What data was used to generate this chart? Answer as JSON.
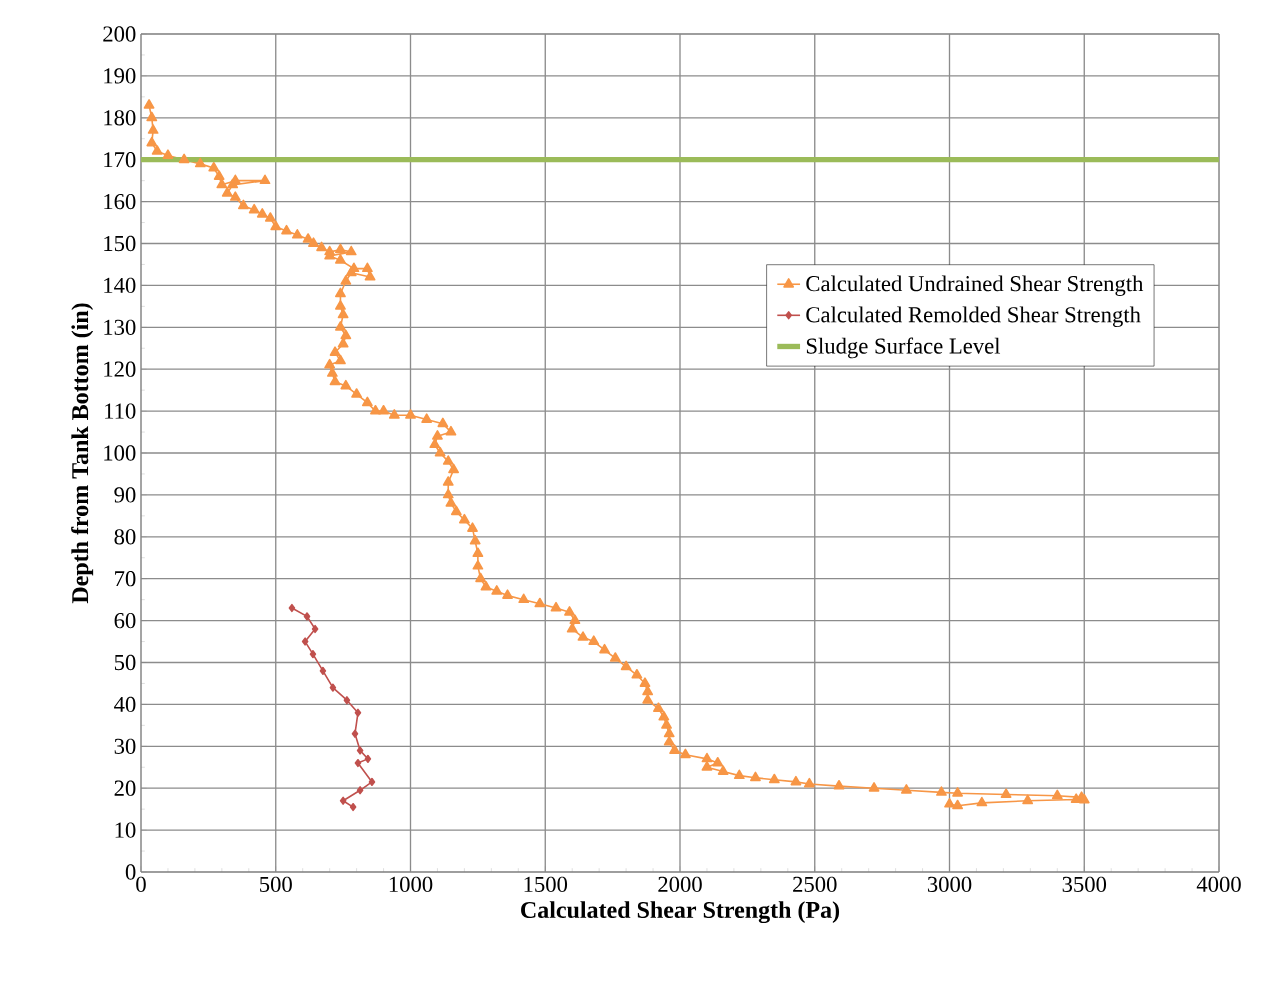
{
  "chart_data": {
    "type": "line",
    "xlabel": "Calculated Shear Strength (Pa)",
    "ylabel": "Depth from Tank Bottom (in)",
    "xlim": [
      0,
      4000
    ],
    "xticks": [
      0,
      500,
      1000,
      1500,
      2000,
      2500,
      3000,
      3500,
      4000
    ],
    "ylim": [
      0,
      200
    ],
    "yticks": [
      0,
      10,
      20,
      30,
      40,
      50,
      60,
      70,
      80,
      90,
      100,
      110,
      120,
      130,
      140,
      150,
      160,
      170,
      180,
      190,
      200
    ],
    "grid": true,
    "legend": "top right",
    "series": [
      {
        "name": "Calculated Undrained Shear Strength",
        "color": "#f79646",
        "marker": "triangle",
        "x": [
          30,
          40,
          45,
          40,
          60,
          100,
          160,
          220,
          270,
          290,
          300,
          350,
          460,
          340,
          320,
          350,
          380,
          420,
          450,
          480,
          500,
          540,
          580,
          620,
          640,
          670,
          700,
          740,
          780,
          700,
          740,
          790,
          840,
          850,
          780,
          760,
          740,
          740,
          750,
          740,
          760,
          750,
          720,
          740,
          700,
          710,
          720,
          760,
          800,
          840,
          870,
          900,
          940,
          1000,
          1060,
          1120,
          1150,
          1100,
          1090,
          1110,
          1140,
          1160,
          1140,
          1140,
          1150,
          1170,
          1200,
          1230,
          1240,
          1250,
          1250,
          1260,
          1280,
          1320,
          1360,
          1420,
          1480,
          1540,
          1590,
          1610,
          1600,
          1640,
          1680,
          1720,
          1760,
          1800,
          1840,
          1870,
          1880,
          1880,
          1920,
          1940,
          1950,
          1960,
          1960,
          1980,
          2020,
          2100,
          2140,
          2100,
          2160,
          2220,
          2280,
          2350,
          2430,
          2480,
          2590,
          2720,
          2840,
          2970,
          3030,
          3210,
          3400,
          3490,
          3500,
          3470,
          3290,
          3120,
          3030,
          3000
        ],
        "values": [
          183,
          180,
          177,
          174,
          172,
          171,
          170,
          169,
          168,
          166,
          164,
          165,
          165,
          164,
          162,
          161,
          159,
          158,
          157,
          156,
          154,
          153,
          152,
          151,
          150,
          149,
          148,
          148.5,
          148,
          147,
          146,
          144,
          144,
          142,
          143,
          141,
          138,
          135,
          133,
          130,
          128,
          126,
          124,
          122,
          121,
          119,
          117,
          116,
          114,
          112,
          110,
          110,
          109,
          109,
          108,
          107,
          105,
          104,
          102,
          100,
          98,
          96,
          93,
          90,
          88,
          86,
          84,
          82,
          79,
          76,
          73,
          70,
          68,
          67,
          66,
          65,
          64,
          63,
          62,
          60,
          58,
          56,
          55,
          53,
          51,
          49,
          47,
          45,
          43,
          41,
          39,
          37,
          35,
          33,
          31,
          29,
          28,
          27,
          26,
          25,
          24,
          23,
          22.5,
          22,
          21.5,
          21,
          20.5,
          20,
          19.5,
          19,
          18.8,
          18.5,
          18.2,
          17.8,
          17.2,
          17.3,
          17,
          16.5,
          15.8,
          16.2
        ]
      },
      {
        "name": "Calculated Remolded Shear Strength",
        "color": "#c0504d",
        "marker": "diamond",
        "x": [
          560,
          616,
          646,
          609,
          638,
          675,
          712,
          764,
          805,
          794,
          813,
          842,
          805,
          857,
          813,
          750,
          787
        ],
        "values": [
          63,
          61,
          58,
          55,
          52,
          48,
          44,
          41,
          38,
          33,
          29,
          27,
          26,
          21.5,
          19.5,
          17,
          15.5
        ]
      }
    ],
    "ref_lines": [
      {
        "axis": "y",
        "value": 170,
        "label": "Sludge Surface Level",
        "color": "#9bbb59"
      }
    ]
  }
}
